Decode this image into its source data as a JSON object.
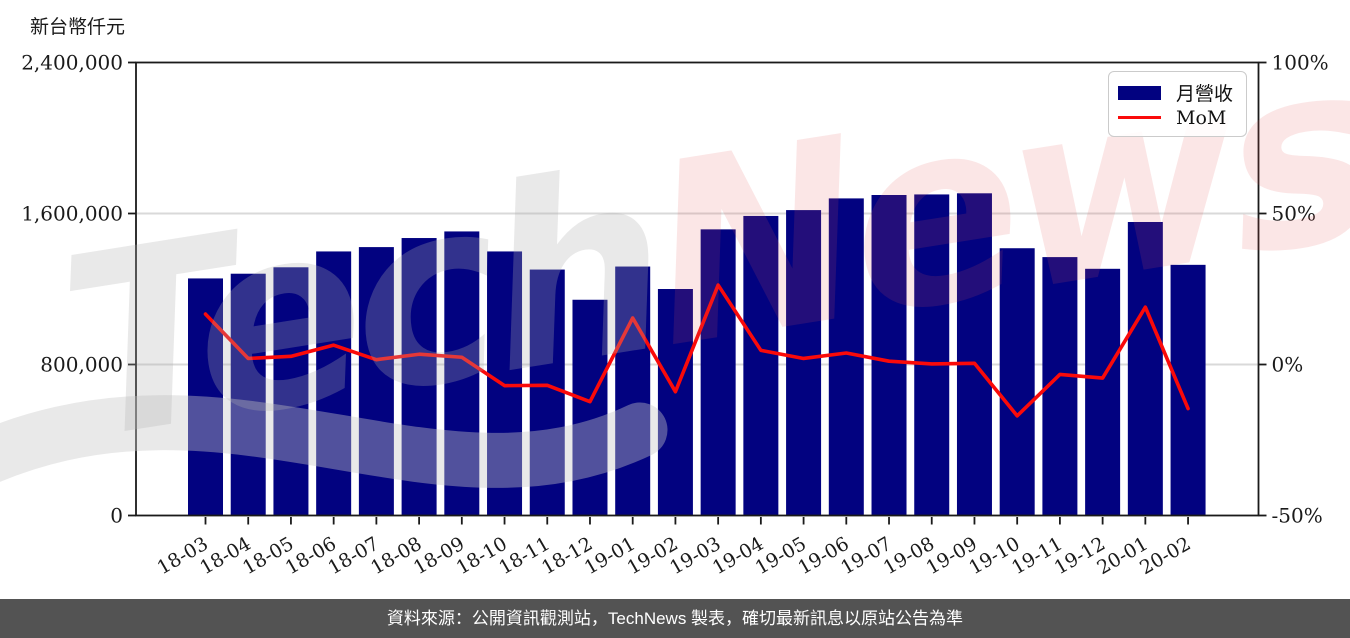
{
  "title": "新台幣仟元",
  "legend": {
    "bar_label": "月營收",
    "line_label": "MoM"
  },
  "footer": {
    "text": "資料來源：公開資訊觀測站，TechNews 製表，確切最新訊息以原站公告為準"
  },
  "watermark": {
    "part1": "Tech",
    "part2": "News"
  },
  "colors": {
    "bar": "#020280",
    "line": "#fa0a0a",
    "grid": "#d9d9d9",
    "axis": "#1a1a1a",
    "tick_text": "#1a1a1a",
    "footer_bg": "#535353",
    "legend_border": "#cbcbcb",
    "watermark_gray": "rgba(175,175,175,0.28)",
    "watermark_pink": "rgba(230,85,85,0.15)"
  },
  "chart_data": {
    "type": "bar+line",
    "title": "",
    "ylabel": "新台幣仟元",
    "categories": [
      "18-03",
      "18-04",
      "18-05",
      "18-06",
      "18-07",
      "18-08",
      "18-09",
      "18-10",
      "18-11",
      "18-12",
      "19-01",
      "19-02",
      "19-03",
      "19-04",
      "19-05",
      "19-06",
      "19-07",
      "19-08",
      "19-09",
      "19-10",
      "19-11",
      "19-12",
      "20-01",
      "20-02"
    ],
    "series": [
      {
        "name": "月營收",
        "type": "bar",
        "axis": "left",
        "unit": "新台幣仟元",
        "values": [
          1256000,
          1281000,
          1315000,
          1399000,
          1422000,
          1470000,
          1505000,
          1399000,
          1303000,
          1143000,
          1319000,
          1200000,
          1516000,
          1587000,
          1618000,
          1680000,
          1698000,
          1701000,
          1707000,
          1416000,
          1369000,
          1307000,
          1555000,
          1328000
        ]
      },
      {
        "name": "MoM",
        "type": "line",
        "axis": "right",
        "unit": "%",
        "values": [
          16.7,
          2.0,
          2.7,
          6.4,
          1.6,
          3.4,
          2.4,
          -7.0,
          -6.9,
          -12.3,
          15.4,
          -9.0,
          26.3,
          4.7,
          2.0,
          3.8,
          1.1,
          0.2,
          0.4,
          -17.0,
          -3.3,
          -4.5,
          19.0,
          -14.6
        ]
      }
    ],
    "left_axis": {
      "unit": "新台幣仟元",
      "range": [
        0,
        2400000
      ],
      "tick_values": [
        0,
        800000,
        1600000,
        2400000
      ],
      "tick_labels": [
        "0",
        "800,000",
        "1,600,000",
        "2,400,000"
      ]
    },
    "right_axis": {
      "name": "MoM",
      "range": [
        -50,
        100
      ],
      "tick_values": [
        -50,
        0,
        50,
        100
      ],
      "tick_labels": [
        "-50%",
        "0%",
        "50%",
        "100%"
      ]
    },
    "grid": "horizontal",
    "legend_position": "top-right",
    "x_tick_rotation_deg": 30
  }
}
